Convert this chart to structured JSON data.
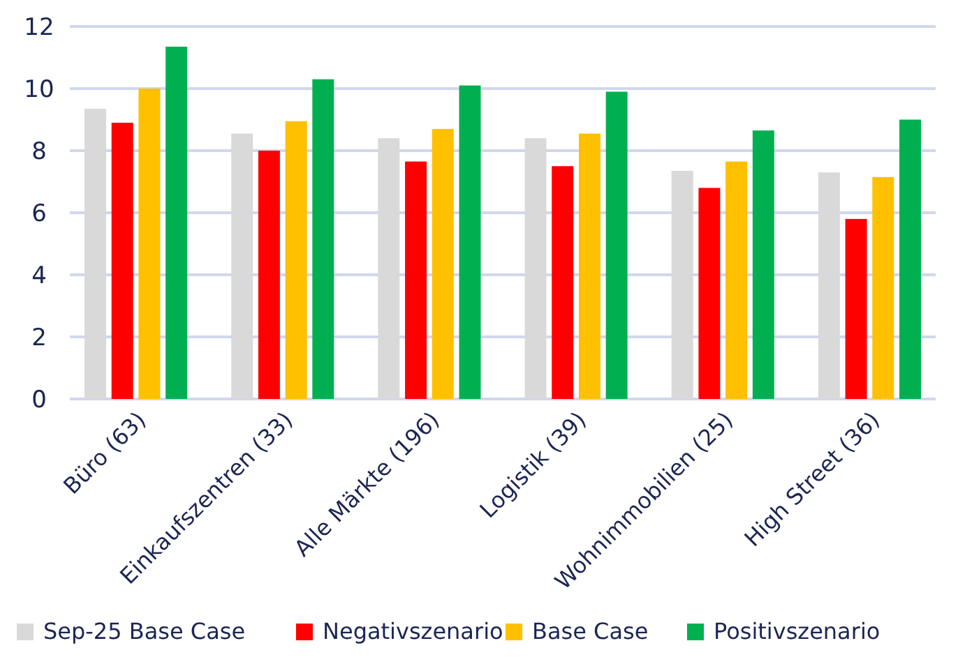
{
  "chart_data": {
    "type": "bar",
    "categories": [
      "Büro (63)",
      "Einkaufszentren (33)",
      "Alle Märkte (196)",
      "Logistik (39)",
      "Wohnimmobilien (25)",
      "High Street (36)"
    ],
    "series": [
      {
        "name": "Sep-25 Base Case",
        "color": "#d9d9d9",
        "values": [
          9.35,
          8.55,
          8.4,
          8.4,
          7.35,
          7.3
        ]
      },
      {
        "name": "Negativszenario",
        "color": "#ff0000",
        "values": [
          8.9,
          8.0,
          7.65,
          7.5,
          6.8,
          5.8
        ]
      },
      {
        "name": "Base Case",
        "color": "#ffc000",
        "values": [
          10.0,
          8.95,
          8.7,
          8.55,
          7.65,
          7.15
        ]
      },
      {
        "name": "Positivszenario",
        "color": "#00b050",
        "values": [
          11.35,
          10.3,
          10.1,
          9.9,
          8.65,
          9.0
        ]
      }
    ],
    "ylim": [
      0,
      12
    ],
    "yticks": [
      0,
      2,
      4,
      6,
      8,
      10,
      12
    ],
    "grid": "y",
    "legend": "bottom"
  }
}
